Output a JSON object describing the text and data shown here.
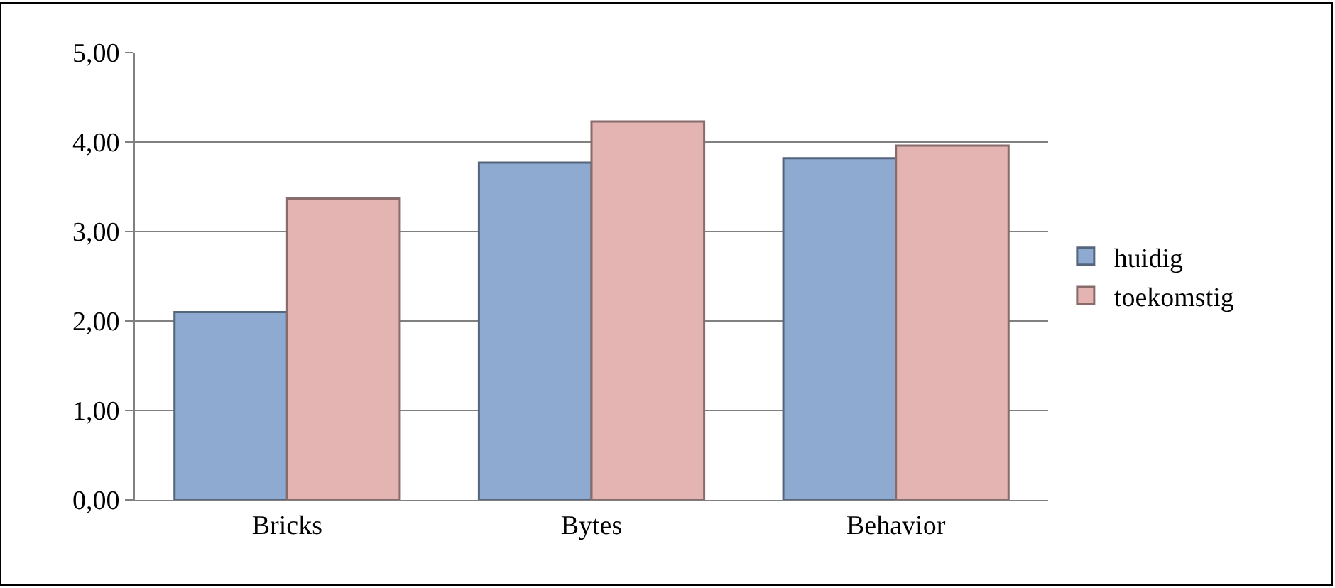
{
  "chart_data": {
    "type": "bar",
    "categories": [
      "Bricks",
      "Bytes",
      "Behavior"
    ],
    "series": [
      {
        "name": "huidig",
        "color": "#8eaad0",
        "values": [
          2.1,
          3.77,
          3.82
        ]
      },
      {
        "name": "toekomstig",
        "color": "#e4b4b3",
        "values": [
          3.37,
          4.23,
          3.96
        ]
      }
    ],
    "ylim": [
      0,
      5
    ],
    "yticks": [
      {
        "value": 0,
        "label": "0,00"
      },
      {
        "value": 1,
        "label": "1,00"
      },
      {
        "value": 2,
        "label": "2,00"
      },
      {
        "value": 3,
        "label": "3,00"
      },
      {
        "value": 4,
        "label": "4,00"
      },
      {
        "value": 5,
        "label": "5,00"
      }
    ],
    "grid": "y",
    "legend": "right"
  }
}
